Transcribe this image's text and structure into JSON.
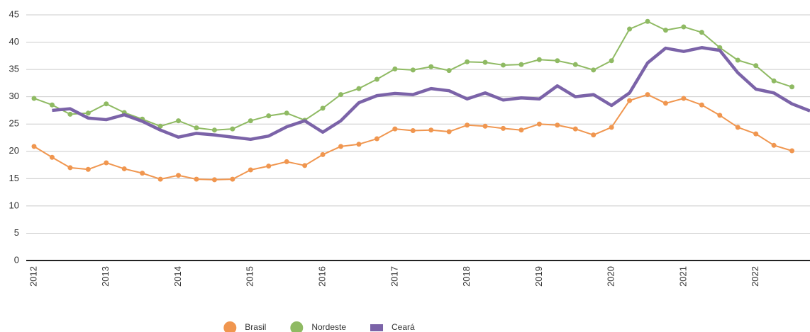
{
  "chart_data": {
    "type": "line",
    "categories": [
      "2012",
      null,
      null,
      null,
      "2013",
      null,
      null,
      null,
      "2014",
      null,
      null,
      null,
      "2015",
      null,
      null,
      null,
      "2016",
      null,
      null,
      null,
      "2017",
      null,
      null,
      null,
      "2018",
      null,
      null,
      null,
      "2019",
      null,
      null,
      null,
      "2020",
      null,
      null,
      null,
      "2021",
      null,
      null,
      null,
      "2022",
      null,
      null,
      null
    ],
    "series": [
      {
        "name": "Brasil",
        "color": "#f0964f",
        "markers": true,
        "line_width": 2,
        "values": [
          20.9,
          18.9,
          17.0,
          16.7,
          17.9,
          16.8,
          16.0,
          14.9,
          15.6,
          14.9,
          14.8,
          14.9,
          16.6,
          17.3,
          18.1,
          17.4,
          19.4,
          20.9,
          21.3,
          22.3,
          24.1,
          23.8,
          23.9,
          23.6,
          24.8,
          24.6,
          24.2,
          23.9,
          25.0,
          24.8,
          24.1,
          23.0,
          24.4,
          29.3,
          30.4,
          28.8,
          29.7,
          28.5,
          26.6,
          24.4,
          23.2,
          21.1,
          20.1,
          null
        ]
      },
      {
        "name": "Nordeste",
        "color": "#8fba63",
        "markers": true,
        "line_width": 2,
        "values": [
          29.7,
          28.5,
          26.8,
          27.0,
          28.7,
          27.1,
          25.9,
          24.6,
          25.6,
          24.3,
          23.9,
          24.1,
          25.6,
          26.5,
          27.0,
          25.7,
          27.9,
          30.4,
          31.5,
          33.2,
          35.1,
          34.9,
          35.5,
          34.8,
          36.4,
          36.3,
          35.8,
          35.9,
          36.8,
          36.6,
          35.9,
          34.9,
          36.6,
          42.4,
          43.8,
          42.2,
          42.8,
          41.8,
          39.0,
          36.7,
          35.7,
          32.9,
          31.8,
          null
        ]
      },
      {
        "name": "Ceará",
        "color": "#7b63a8",
        "markers": false,
        "line_width": 4.5,
        "values": [
          null,
          27.5,
          27.8,
          26.1,
          25.8,
          26.7,
          25.5,
          23.9,
          22.6,
          23.3,
          23.0,
          22.6,
          22.2,
          22.8,
          24.5,
          25.6,
          23.5,
          25.6,
          28.9,
          30.2,
          30.6,
          30.4,
          31.5,
          31.1,
          29.6,
          30.7,
          29.4,
          29.8,
          29.6,
          32.0,
          30.0,
          30.4,
          28.4,
          30.7,
          36.2,
          38.9,
          38.3,
          39.0,
          38.5,
          34.4,
          31.4,
          30.7,
          28.7,
          27.4
        ]
      }
    ],
    "ylim": [
      0,
      45
    ],
    "yticks": [
      0,
      5,
      10,
      15,
      20,
      25,
      30,
      35,
      40,
      45
    ],
    "grid": true,
    "legend": "bottom"
  }
}
